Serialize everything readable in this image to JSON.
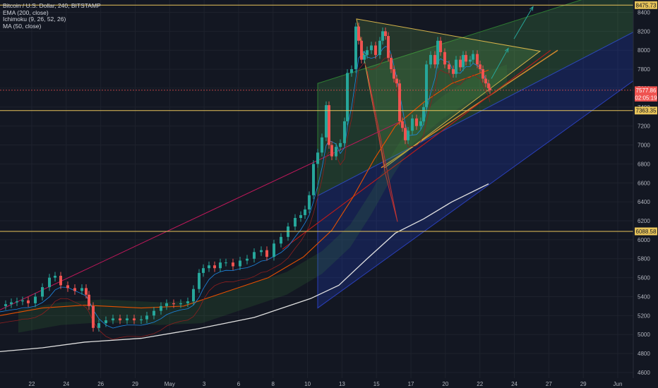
{
  "legend": {
    "title": "Bitcoin / U.S. Dollar, 240, BITSTAMP",
    "indicators": [
      "EMA (200, close)",
      "Ichimoku (9, 26, 52, 26)",
      "MA (50, close)"
    ]
  },
  "chart_data": {
    "type": "candlestick",
    "symbol": "Bitcoin / U.S. Dollar",
    "timeframe": "240",
    "exchange": "BITSTAMP",
    "x_ticks": [
      "22",
      "24",
      "26",
      "29",
      "May",
      "3",
      "6",
      "8",
      "10",
      "13",
      "15",
      "17",
      "20",
      "22",
      "24",
      "27",
      "29",
      "Jun"
    ],
    "y_ticks": [
      4600,
      4800,
      5000,
      5200,
      5400,
      5600,
      5800,
      6000,
      6200,
      6400,
      6600,
      6800,
      7000,
      7200,
      7400,
      7600,
      7800,
      8000,
      8200,
      8400
    ],
    "ylim": [
      4540,
      8530
    ],
    "price_labels": [
      {
        "value": 8475.73,
        "text": "8475.73",
        "kind": "horizontal-line",
        "color": "#e8c45a"
      },
      {
        "value": 7577.86,
        "text": "7577.86",
        "kind": "last-price",
        "color": "#ef5350"
      },
      {
        "value": 7500,
        "text": "02:05:19",
        "kind": "countdown",
        "color": "#ef5350"
      },
      {
        "value": 7363.35,
        "text": "7363.35",
        "kind": "horizontal-line",
        "color": "#e8c45a"
      },
      {
        "value": 6088.58,
        "text": "6088.58",
        "kind": "horizontal-line",
        "color": "#e8c45a"
      }
    ],
    "close_path": [
      [
        0,
        5300
      ],
      [
        8,
        5320
      ],
      [
        16,
        5340
      ],
      [
        24,
        5350
      ],
      [
        32,
        5360
      ],
      [
        40,
        5330
      ],
      [
        50,
        5400
      ],
      [
        60,
        5500
      ],
      [
        70,
        5600
      ],
      [
        78,
        5620
      ],
      [
        86,
        5520
      ],
      [
        96,
        5490
      ],
      [
        106,
        5460
      ],
      [
        116,
        5490
      ],
      [
        122,
        5420
      ],
      [
        126,
        5300
      ],
      [
        132,
        5070
      ],
      [
        140,
        5120
      ],
      [
        150,
        5150
      ],
      [
        160,
        5170
      ],
      [
        170,
        5150
      ],
      [
        180,
        5170
      ],
      [
        190,
        5150
      ],
      [
        200,
        5160
      ],
      [
        208,
        5200
      ],
      [
        218,
        5250
      ],
      [
        228,
        5300
      ],
      [
        236,
        5330
      ],
      [
        246,
        5320
      ],
      [
        256,
        5330
      ],
      [
        266,
        5350
      ],
      [
        274,
        5480
      ],
      [
        282,
        5650
      ],
      [
        288,
        5700
      ],
      [
        296,
        5730
      ],
      [
        304,
        5700
      ],
      [
        312,
        5760
      ],
      [
        320,
        5760
      ],
      [
        330,
        5720
      ],
      [
        340,
        5780
      ],
      [
        350,
        5800
      ],
      [
        360,
        5870
      ],
      [
        370,
        5890
      ],
      [
        378,
        5820
      ],
      [
        388,
        5960
      ],
      [
        398,
        6030
      ],
      [
        408,
        6140
      ],
      [
        418,
        6230
      ],
      [
        426,
        6260
      ],
      [
        432,
        6320
      ],
      [
        438,
        6470
      ],
      [
        444,
        6800
      ],
      [
        450,
        6920
      ],
      [
        456,
        7080
      ],
      [
        462,
        7420
      ],
      [
        466,
        7000
      ],
      [
        470,
        6880
      ],
      [
        476,
        6980
      ],
      [
        482,
        7020
      ],
      [
        488,
        7250
      ],
      [
        492,
        7760
      ],
      [
        498,
        7800
      ],
      [
        504,
        8250
      ],
      [
        508,
        8100
      ],
      [
        512,
        7900
      ],
      [
        516,
        7950
      ],
      [
        520,
        8000
      ],
      [
        526,
        8050
      ],
      [
        532,
        7950
      ],
      [
        538,
        8100
      ],
      [
        542,
        8200
      ],
      [
        546,
        8150
      ],
      [
        550,
        7920
      ],
      [
        554,
        7800
      ],
      [
        558,
        7700
      ],
      [
        562,
        7650
      ],
      [
        566,
        7250
      ],
      [
        570,
        7180
      ],
      [
        574,
        7050
      ],
      [
        578,
        7150
      ],
      [
        584,
        7280
      ],
      [
        590,
        7200
      ],
      [
        596,
        7250
      ],
      [
        600,
        7400
      ],
      [
        604,
        7850
      ],
      [
        610,
        7950
      ],
      [
        616,
        7850
      ],
      [
        620,
        8100
      ],
      [
        624,
        7980
      ],
      [
        630,
        7850
      ],
      [
        636,
        7800
      ],
      [
        642,
        7750
      ],
      [
        646,
        7900
      ],
      [
        652,
        7820
      ],
      [
        656,
        7950
      ],
      [
        660,
        7880
      ],
      [
        666,
        7900
      ],
      [
        670,
        7960
      ],
      [
        676,
        7850
      ],
      [
        680,
        7800
      ],
      [
        684,
        7700
      ],
      [
        688,
        7650
      ],
      [
        692,
        7600
      ],
      [
        694,
        7578
      ]
    ],
    "ema_200": [
      [
        0,
        4820
      ],
      [
        60,
        4860
      ],
      [
        120,
        4920
      ],
      [
        200,
        4960
      ],
      [
        280,
        5060
      ],
      [
        360,
        5180
      ],
      [
        440,
        5380
      ],
      [
        480,
        5520
      ],
      [
        520,
        5800
      ],
      [
        560,
        6070
      ],
      [
        600,
        6220
      ],
      [
        640,
        6400
      ],
      [
        692,
        6590
      ]
    ],
    "ma_50": [
      [
        0,
        5200
      ],
      [
        60,
        5280
      ],
      [
        120,
        5310
      ],
      [
        200,
        5280
      ],
      [
        260,
        5300
      ],
      [
        320,
        5450
      ],
      [
        380,
        5600
      ],
      [
        430,
        5820
      ],
      [
        470,
        6100
      ],
      [
        500,
        6450
      ],
      [
        530,
        6850
      ],
      [
        560,
        7200
      ],
      [
        600,
        7450
      ],
      [
        640,
        7650
      ],
      [
        692,
        7790
      ]
    ],
    "channel_regression": {
      "upper_start": [
        450,
        7650
      ],
      "upper_end": [
        920,
        8760
      ],
      "mid_start": [
        540,
        6760
      ],
      "mid_end": [
        790,
        8000
      ],
      "lower_start": [
        450,
        5280
      ],
      "lower_end": [
        920,
        7800
      ]
    },
    "triangle": {
      "apex": [
        765,
        7990
      ],
      "top_start": [
        505,
        8330
      ],
      "bottom_start": [
        545,
        6760
      ]
    },
    "forecast_arrows": [
      {
        "from": [
          696,
          7700
        ],
        "to": [
          720,
          8020
        ]
      },
      {
        "from": [
          728,
          8120
        ],
        "to": [
          755,
          8460
        ]
      }
    ]
  }
}
